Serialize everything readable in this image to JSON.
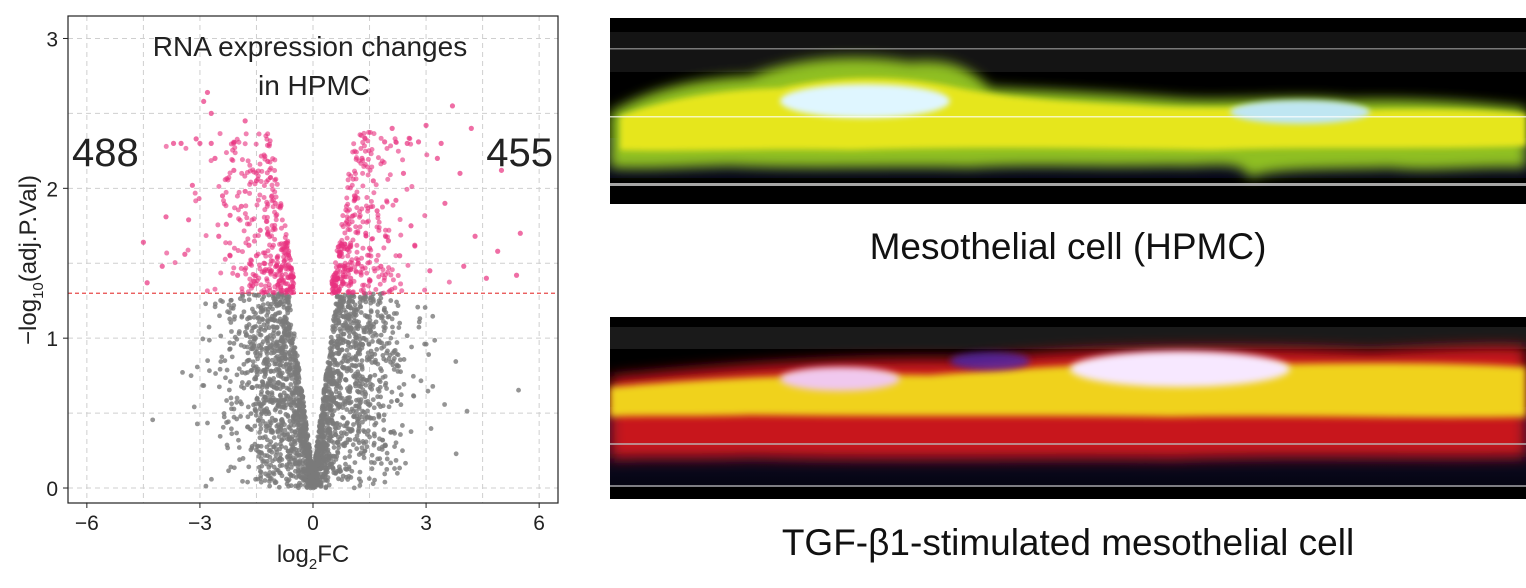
{
  "chart_data": {
    "type": "scatter",
    "title": "RNA expression changes\nin HPMC",
    "title_line1": "RNA expression changes",
    "title_line2": "in HPMC",
    "xlabel_main": "log",
    "xlabel_sub": "2",
    "xlabel_tail": "FC",
    "ylabel_main": "−log",
    "ylabel_sub": "10",
    "ylabel_tail": "(adj.P.Val)",
    "xlim": [
      -6.5,
      6.5
    ],
    "ylim": [
      -0.1,
      3.15
    ],
    "xticks": [
      -6,
      -3,
      0,
      3,
      6
    ],
    "xtick_labels": [
      "−6",
      "−3",
      "0",
      "3",
      "6"
    ],
    "yticks": [
      0,
      1,
      2,
      3
    ],
    "ytick_labels": [
      "0",
      "1",
      "2",
      "3"
    ],
    "threshold_y": 1.3,
    "grid": true,
    "left_count": "488",
    "right_count": "455",
    "colors": {
      "significant": "#e8307f",
      "nonsignificant": "#7a7a7a",
      "threshold": "#e84a4a"
    },
    "series": [
      {
        "points": [
          [
            -4.5,
            1.64
          ],
          [
            -4.4,
            1.37
          ],
          [
            -4.0,
            1.48
          ],
          [
            -3.9,
            1.81
          ],
          [
            -3.7,
            2.3
          ],
          [
            -3.4,
            1.56
          ],
          [
            -3.3,
            1.79
          ],
          [
            -3.2,
            2.02
          ],
          [
            -3.1,
            2.33
          ],
          [
            -2.9,
            2.58
          ],
          [
            -2.8,
            2.64
          ],
          [
            -2.7,
            2.5
          ],
          [
            -2.6,
            2.2
          ],
          [
            -2.4,
            1.95
          ],
          [
            -2.3,
            1.76
          ],
          [
            -2.2,
            1.55
          ],
          [
            -2.1,
            2.12
          ],
          [
            -2.0,
            1.42
          ],
          [
            -1.9,
            1.88
          ],
          [
            -1.8,
            2.45
          ],
          [
            -1.7,
            1.62
          ],
          [
            -1.6,
            1.35
          ],
          [
            -1.5,
            2.05
          ],
          [
            -1.4,
            1.72
          ],
          [
            -1.3,
            1.5
          ],
          [
            -1.2,
            2.18
          ],
          [
            -1.1,
            1.45
          ],
          [
            -1.0,
            1.9
          ],
          [
            -0.9,
            1.38
          ],
          [
            -0.8,
            1.6
          ],
          [
            -0.7,
            1.32
          ],
          [
            -2.5,
            1.68
          ],
          [
            -3.5,
            2.3
          ],
          [
            -3.0,
            2.3
          ],
          [
            -2.7,
            2.3
          ],
          [
            -1.5,
            1.55
          ],
          [
            -1.2,
            1.7
          ],
          [
            -0.9,
            1.45
          ],
          [
            -2.2,
            1.82
          ],
          [
            -1.8,
            1.98
          ],
          [
            0.6,
            1.35
          ],
          [
            0.7,
            1.55
          ],
          [
            0.8,
            1.42
          ],
          [
            0.9,
            1.78
          ],
          [
            1.0,
            1.62
          ],
          [
            1.1,
            1.95
          ],
          [
            1.2,
            1.5
          ],
          [
            1.3,
            2.2
          ],
          [
            1.4,
            1.7
          ],
          [
            1.5,
            1.38
          ],
          [
            1.6,
            2.05
          ],
          [
            1.7,
            1.85
          ],
          [
            1.8,
            1.48
          ],
          [
            1.9,
            2.31
          ],
          [
            2.0,
            1.65
          ],
          [
            2.1,
            2.4
          ],
          [
            2.2,
            1.92
          ],
          [
            2.3,
            1.55
          ],
          [
            2.4,
            2.1
          ],
          [
            2.6,
            1.75
          ],
          [
            2.8,
            2.31
          ],
          [
            3.0,
            2.42
          ],
          [
            3.1,
            1.45
          ],
          [
            3.3,
            2.2
          ],
          [
            3.5,
            1.9
          ],
          [
            3.7,
            2.55
          ],
          [
            3.9,
            2.1
          ],
          [
            4.0,
            1.48
          ],
          [
            4.2,
            2.4
          ],
          [
            4.3,
            1.68
          ],
          [
            4.6,
            1.4
          ],
          [
            4.9,
            1.58
          ],
          [
            5.0,
            2.12
          ],
          [
            5.4,
            1.42
          ],
          [
            5.5,
            1.7
          ],
          [
            1.5,
            1.6
          ],
          [
            1.0,
            1.4
          ],
          [
            2.5,
            2.3
          ],
          [
            3.4,
            2.3
          ],
          [
            2.7,
            1.62
          ]
        ]
      }
    ]
  },
  "panels": {
    "top_caption": "Mesothelial cell (HPMC)",
    "bottom_caption": "TGF-β1-stimulated mesothelial cell"
  }
}
